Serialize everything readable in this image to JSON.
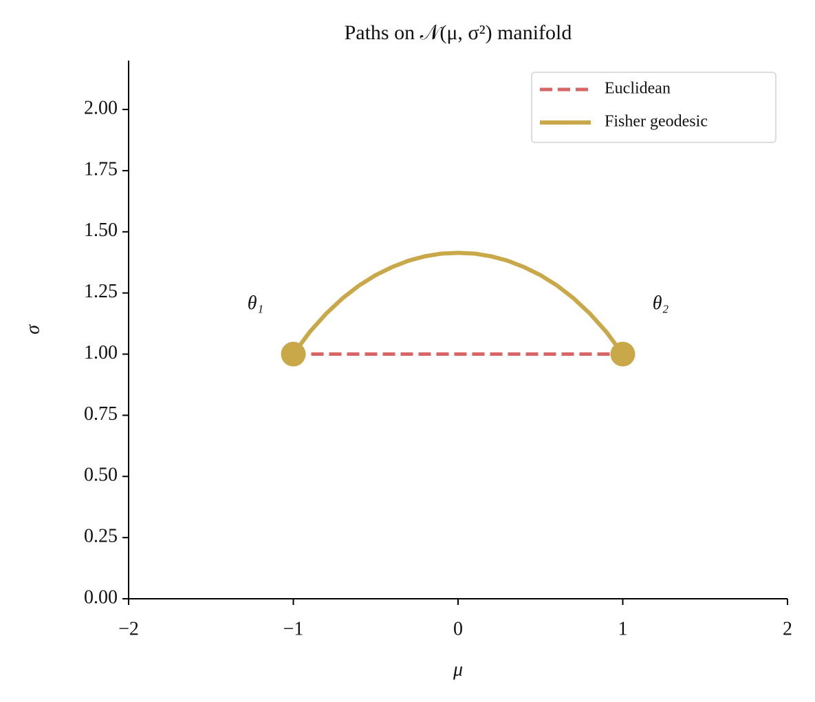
{
  "chart_data": {
    "type": "line",
    "title": "Paths on 𝒩(μ, σ²) manifold",
    "x_label": "μ",
    "y_label": "σ",
    "xlim": [
      -2,
      2
    ],
    "ylim": [
      0,
      2.2
    ],
    "xticks": [
      {
        "value": -2,
        "label": "−2"
      },
      {
        "value": -1,
        "label": "−1"
      },
      0,
      1,
      2
    ],
    "yticks": [
      {
        "value": 0,
        "label": "0.00"
      },
      {
        "value": 0.25,
        "label": "0.25"
      },
      {
        "value": 0.5,
        "label": "0.50"
      },
      {
        "value": 0.75,
        "label": "0.75"
      },
      {
        "value": 1,
        "label": "1.00"
      },
      {
        "value": 1.25,
        "label": "1.25"
      },
      {
        "value": 1.5,
        "label": "1.50"
      },
      {
        "value": 1.75,
        "label": "1.75"
      },
      {
        "value": 2,
        "label": "2.00"
      }
    ],
    "legend": "upper right",
    "series": [
      {
        "name": "Euclidean",
        "color": "#d96666",
        "style": "dashed",
        "x": [
          -1,
          1
        ],
        "values": [
          1,
          1
        ]
      },
      {
        "name": "Fisher geodesic",
        "color": "#c9a84a",
        "style": "solid",
        "x": [
          -1,
          -0.9,
          -0.8,
          -0.7,
          -0.6,
          -0.5,
          -0.4,
          -0.3,
          -0.2,
          -0.1,
          0,
          0.1,
          0.2,
          0.3,
          0.4,
          0.5,
          0.6,
          0.7,
          0.8,
          0.9,
          1
        ],
        "values": [
          1.0,
          1.091,
          1.166,
          1.229,
          1.281,
          1.323,
          1.356,
          1.382,
          1.4,
          1.411,
          1.414,
          1.411,
          1.4,
          1.382,
          1.356,
          1.323,
          1.281,
          1.229,
          1.166,
          1.091,
          1.0
        ]
      }
    ],
    "points": {
      "color": "#c9a84a",
      "x": [
        -1,
        1
      ],
      "values": [
        1,
        1
      ],
      "labels": [
        "θ₁",
        "θ₂"
      ]
    }
  }
}
